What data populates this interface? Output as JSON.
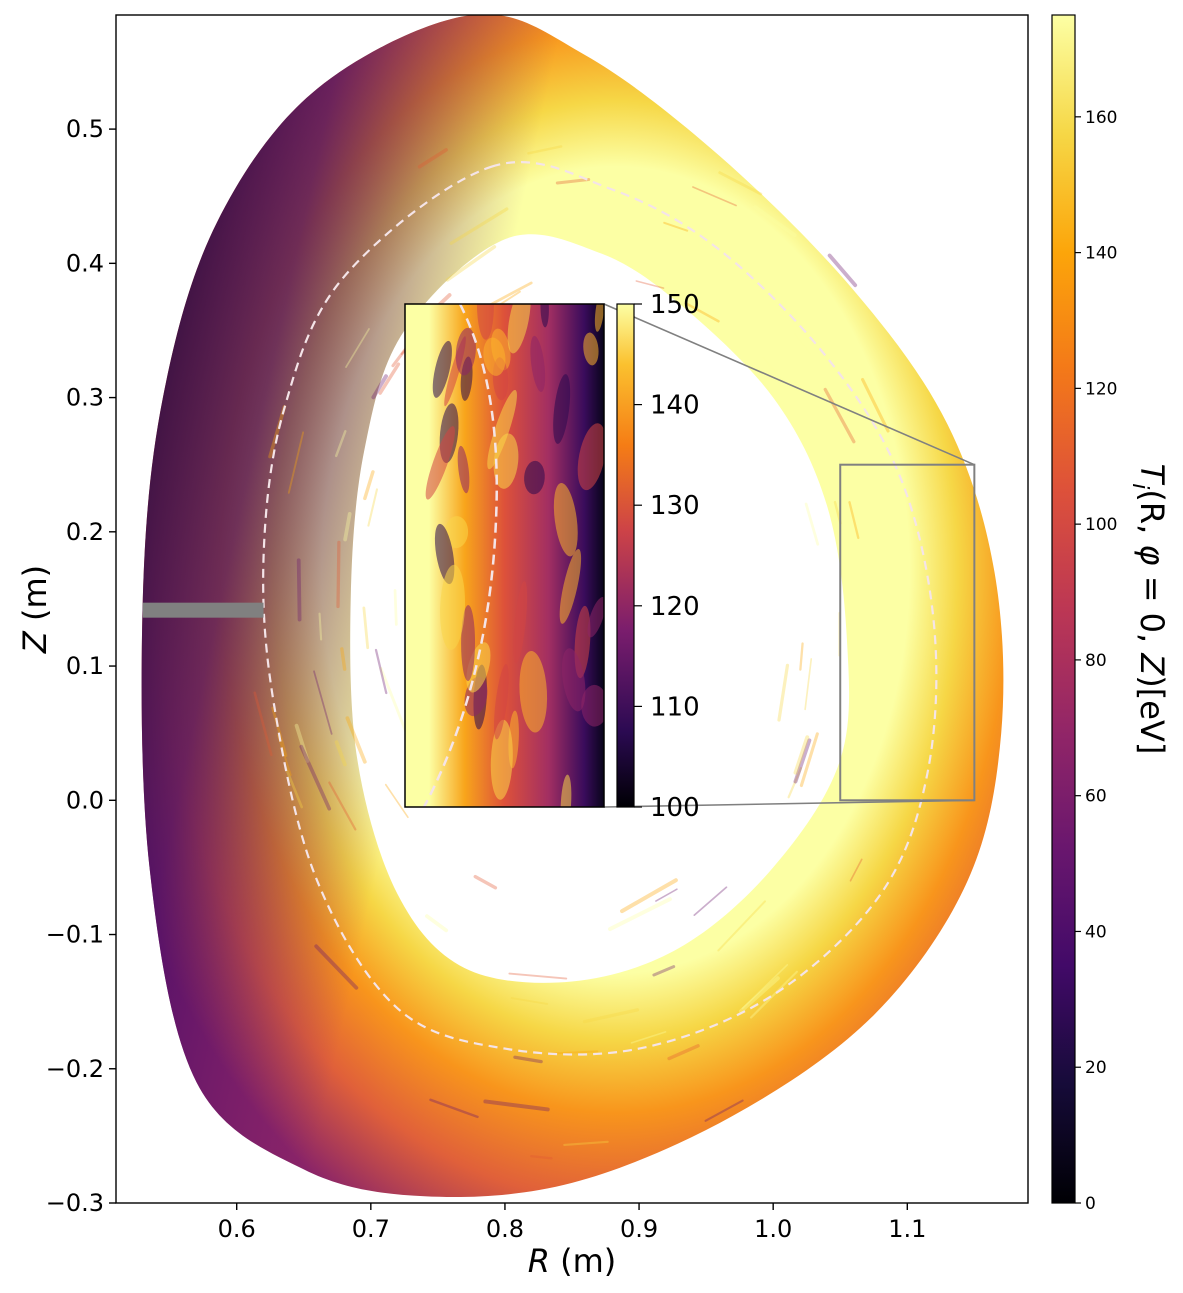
{
  "chart_data": {
    "type": "heatmap",
    "title": "",
    "xlabel_var": "R",
    "xlabel_unit": " (m)",
    "ylabel_var": "Z",
    "ylabel_unit": " (m)",
    "xlim": [
      0.51,
      1.19
    ],
    "ylim": [
      -0.3,
      0.585
    ],
    "xticks": [
      {
        "value": 0.6,
        "label": "0.6"
      },
      {
        "value": 0.7,
        "label": "0.7"
      },
      {
        "value": 0.8,
        "label": "0.8"
      },
      {
        "value": 0.9,
        "label": "0.9"
      },
      {
        "value": 1.0,
        "label": "1.0"
      },
      {
        "value": 1.1,
        "label": "1.1"
      }
    ],
    "yticks": [
      {
        "value": -0.3,
        "label": "−0.3"
      },
      {
        "value": -0.2,
        "label": "−0.2"
      },
      {
        "value": -0.1,
        "label": "−0.1"
      },
      {
        "value": 0.0,
        "label": "0.0"
      },
      {
        "value": 0.1,
        "label": "0.1"
      },
      {
        "value": 0.2,
        "label": "0.2"
      },
      {
        "value": 0.3,
        "label": "0.3"
      },
      {
        "value": 0.4,
        "label": "0.4"
      },
      {
        "value": 0.5,
        "label": "0.5"
      }
    ],
    "colormap": "inferno",
    "colorbar": {
      "label": "T_i(R, φ = 0, Z)[eV]",
      "label_parts": [
        "T",
        "i",
        "(R, ",
        "φ",
        " = 0, ",
        "Z",
        ")[eV]"
      ],
      "range": [
        0,
        175
      ],
      "ticks": [
        {
          "value": 0,
          "label": "0"
        },
        {
          "value": 20,
          "label": "20"
        },
        {
          "value": 40,
          "label": "40"
        },
        {
          "value": 60,
          "label": "60"
        },
        {
          "value": 80,
          "label": "80"
        },
        {
          "value": 100,
          "label": "100"
        },
        {
          "value": 120,
          "label": "120"
        },
        {
          "value": 140,
          "label": "140"
        },
        {
          "value": 160,
          "label": "160"
        }
      ]
    },
    "zoom_box": {
      "R_range": [
        1.05,
        1.15
      ],
      "Z_range": [
        0.0,
        0.25
      ]
    },
    "inset": {
      "colorbar_range": [
        100,
        150
      ],
      "ticks": [
        {
          "value": 100,
          "label": "100"
        },
        {
          "value": 110,
          "label": "110"
        },
        {
          "value": 120,
          "label": "120"
        },
        {
          "value": 130,
          "label": "130"
        },
        {
          "value": 140,
          "label": "140"
        },
        {
          "value": 150,
          "label": "150"
        }
      ]
    },
    "grid": false,
    "colors": {
      "box": "#808080",
      "separatrix": "#f4e4e8",
      "probe": "#808080"
    }
  }
}
